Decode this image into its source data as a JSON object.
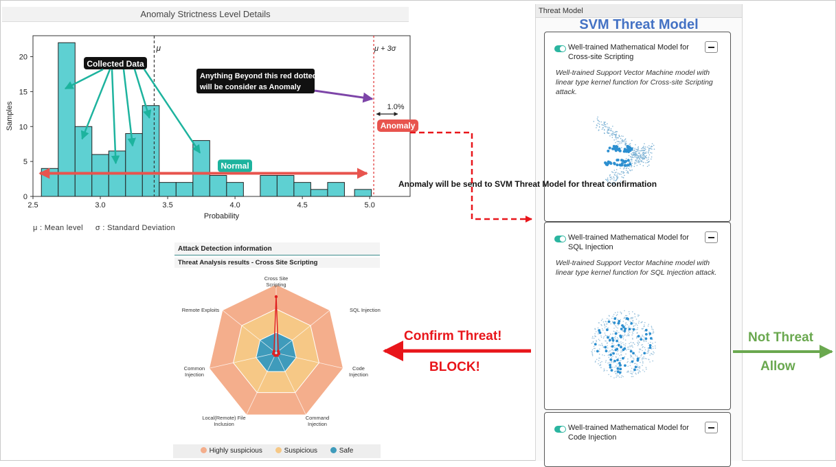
{
  "histogram": {
    "title": "Anomaly Strictness Level Details",
    "legend_note_mean": "μ : Mean  level",
    "legend_note_sd": "σ : Standard Deviation",
    "mu_label": "μ",
    "threshold_label": "μ + 3σ",
    "percent_label": "1.0%",
    "anomaly_badge": "Anomaly",
    "normal_badge": "Normal",
    "collected_label": "Collected Data",
    "beyond_note_line1": "Anything Beyond this red dotted line",
    "beyond_note_line2": "will be consider as Anomaly"
  },
  "chart_data": {
    "type": "bar",
    "xlabel": "Probability",
    "ylabel": "Samples",
    "xlim": [
      2.5,
      5.3
    ],
    "ylim": [
      0,
      23
    ],
    "xticks": [
      "2.5",
      "3.0",
      "3.5",
      "4.0",
      "4.5",
      "5.0"
    ],
    "yticks": [
      "0",
      "5",
      "10",
      "15",
      "20"
    ],
    "bin_width": 0.125,
    "bins": [
      {
        "x": 2.625,
        "value": 4
      },
      {
        "x": 2.75,
        "value": 22
      },
      {
        "x": 2.875,
        "value": 10
      },
      {
        "x": 3.0,
        "value": 6
      },
      {
        "x": 3.125,
        "value": 6.5
      },
      {
        "x": 3.25,
        "value": 9
      },
      {
        "x": 3.375,
        "value": 13
      },
      {
        "x": 3.5,
        "value": 2
      },
      {
        "x": 3.625,
        "value": 2
      },
      {
        "x": 3.75,
        "value": 8
      },
      {
        "x": 3.875,
        "value": 3
      },
      {
        "x": 4.0,
        "value": 2
      },
      {
        "x": 4.25,
        "value": 3
      },
      {
        "x": 4.375,
        "value": 3
      },
      {
        "x": 4.5,
        "value": 2
      },
      {
        "x": 4.625,
        "value": 1
      },
      {
        "x": 4.75,
        "value": 2
      },
      {
        "x": 4.95,
        "value": 1
      }
    ],
    "mean_x": 3.4,
    "threshold_x": 5.03,
    "normal_range": [
      2.52,
      5.0
    ],
    "colors": {
      "bar": "#5ed0d2",
      "mean_line": "#333333",
      "threshold_line": "#e03030",
      "normal_arrow": "#e8544e",
      "annotation": "#1db39e",
      "note_arrow": "#7d45a8"
    }
  },
  "flow": {
    "anomaly_note": "Anomaly will be send to SVM Threat Model for threat confirmation",
    "confirm_threat": "Confirm Threat!",
    "block": "BLOCK!",
    "not_threat": "Not Threat",
    "allow": "Allow"
  },
  "threat_model": {
    "header": "Threat Model",
    "title": "SVM Threat Model",
    "cards": [
      {
        "title": "Well-trained Mathematical Model for Cross-site Scripting",
        "desc": "Well-trained Support Vector Machine model with linear type kernel function for Cross-site Scripting attack.",
        "enabled": true
      },
      {
        "title": "Well-trained Mathematical Model for SQL Injection",
        "desc": "Well-trained Support Vector Machine model with linear type kernel function for SQL Injection attack.",
        "enabled": true
      },
      {
        "title": "Well-trained Mathematical Model for Code Injection",
        "desc": "",
        "enabled": true
      }
    ]
  },
  "attack_detection": {
    "header": "Attack Detection information",
    "subheader": "Threat Analysis results - Cross Site Scripting",
    "axes": [
      {
        "label1": "Cross Site",
        "label2": "Scripting"
      },
      {
        "label1": "SQL Injection",
        "label2": ""
      },
      {
        "label1": "Code",
        "label2": "Injection"
      },
      {
        "label1": "Command",
        "label2": "Injection"
      },
      {
        "label1": "Local(Remote) File",
        "label2": "Inclusion"
      },
      {
        "label1": "Common",
        "label2": "Injection"
      },
      {
        "label1": "Remote Exploits",
        "label2": ""
      }
    ],
    "levels": [
      {
        "name": "Highly suspicious",
        "color": "#f4ae8c"
      },
      {
        "name": "Suspicious",
        "color": "#f6c886"
      },
      {
        "name": "Safe",
        "color": "#3f9bbb"
      }
    ],
    "scores": [
      0.82,
      0.04,
      0.04,
      0.04,
      0.04,
      0.04,
      0.04
    ],
    "series_color": "#e02020"
  }
}
